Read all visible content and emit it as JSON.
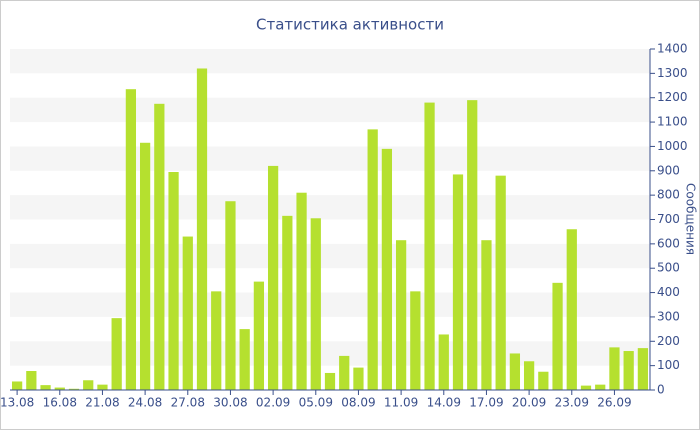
{
  "chart_data": {
    "type": "bar",
    "title": "Статистика активности",
    "y_label": "Сообщения",
    "categories": [
      "13.08",
      null,
      null,
      "16.08",
      null,
      null,
      "21.08",
      null,
      null,
      "24.08",
      null,
      null,
      "27.08",
      null,
      null,
      "30.08",
      null,
      null,
      "02.09",
      null,
      null,
      "05.09",
      null,
      null,
      "08.09",
      null,
      null,
      "11.09",
      null,
      null,
      "14.09",
      null,
      null,
      "17.09",
      null,
      null,
      "20.09",
      null,
      null,
      "23.09",
      null,
      null,
      "26.09",
      null,
      null
    ],
    "values": [
      35,
      78,
      20,
      10,
      5,
      40,
      22,
      295,
      1235,
      1015,
      1175,
      895,
      630,
      1320,
      405,
      775,
      250,
      445,
      920,
      715,
      810,
      705,
      70,
      140,
      92,
      1070,
      990,
      615,
      405,
      1180,
      228,
      885,
      1190,
      615,
      880,
      150,
      118,
      75,
      440,
      660,
      18,
      22,
      175,
      160,
      172
    ],
    "color": "#b5e02f",
    "ylim": [
      0,
      1400
    ],
    "yticks": [
      0,
      100,
      200,
      300,
      400,
      500,
      600,
      700,
      800,
      900,
      1000,
      1100,
      1200,
      1300,
      1400
    ],
    "grid": true
  }
}
